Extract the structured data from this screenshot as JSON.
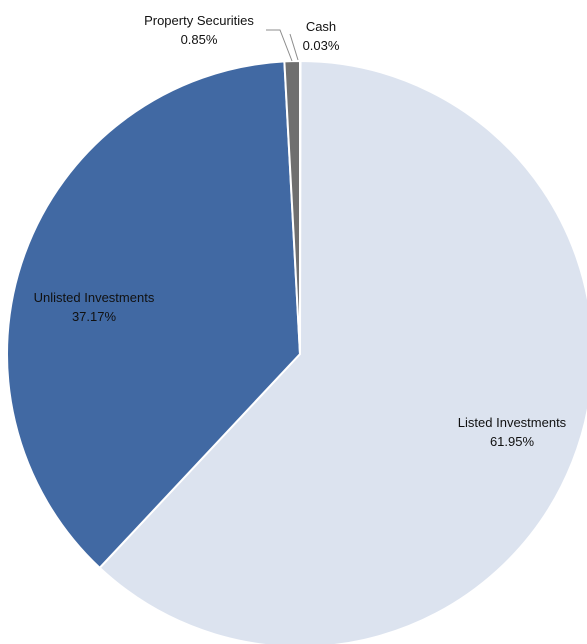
{
  "chart_data": {
    "type": "pie",
    "slices": [
      {
        "label": "Cash",
        "value": 0.03,
        "value_label": "0.03%",
        "color": "#3d3d3d"
      },
      {
        "label": "Listed Investments",
        "value": 61.95,
        "value_label": "61.95%",
        "color": "#dce3ef"
      },
      {
        "label": "Unlisted Investments",
        "value": 37.17,
        "value_label": "37.17%",
        "color": "#4169a3"
      },
      {
        "label": "Property Securities",
        "value": 0.85,
        "value_label": "0.85%",
        "color": "#6f6f6f"
      }
    ],
    "start_angle": "12 o'clock",
    "direction": "clockwise",
    "legend": "none",
    "labels": "data labels with leader lines for small slices"
  }
}
